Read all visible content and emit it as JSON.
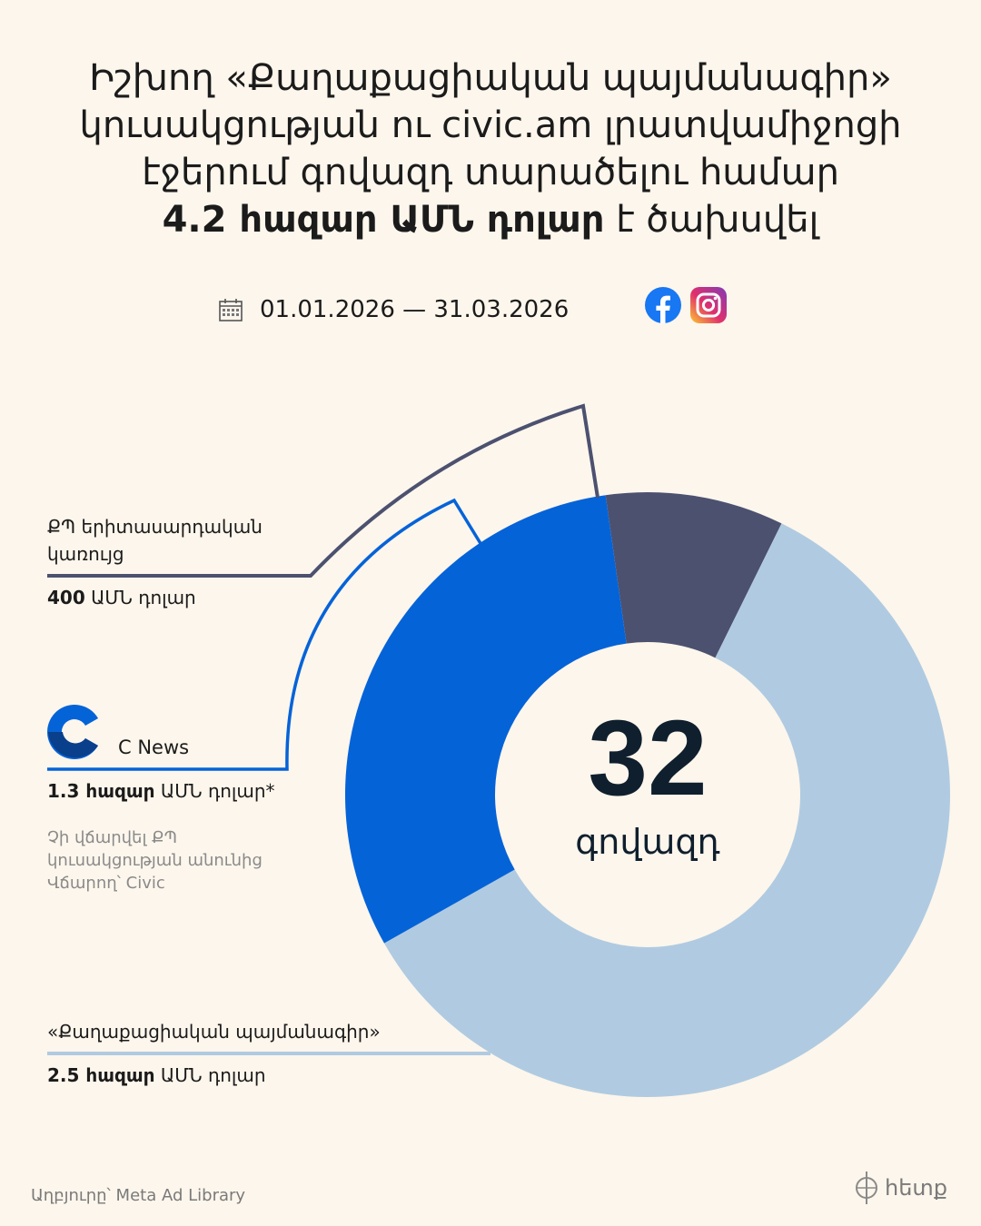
{
  "title": {
    "line1": "Իշխող «Քաղաքացիական պայմանագիր»",
    "line2": "կուսակցության ու civic.am լրատվամիջոցի",
    "line3": "էջերում գովազդ տարածելու համար",
    "amount_bold": "4.2 հազար ԱՄՆ դոլար",
    "amount_rest": " է ծախսվել"
  },
  "period": "01.01.2026 — 31.03.2026",
  "icons": {
    "calendar": "calendar-icon",
    "facebook": "facebook-icon",
    "instagram": "instagram-icon"
  },
  "colors": {
    "background": "#fdf6ec",
    "kp_youth": "#4c5170",
    "cnews": "#0563d8",
    "civil_contract": "#b0cbe1",
    "cnews_logo_dark": "#0a3f8c"
  },
  "labels": {
    "kp_youth_line1": "ՔՊ երիտասարդական",
    "kp_youth_line2": "կառույց",
    "kp_youth_amount_bold": "400",
    "kp_youth_amount_rest": " ԱՄՆ դոլար",
    "cnews_name": "C News",
    "cnews_amount_bold": "1.3 հազար",
    "cnews_amount_rest": " ԱՄՆ դոլար*",
    "cnews_note1": "Չի վճարվել ՔՊ",
    "cnews_note2": "կուսակցության անունից",
    "cnews_note3": "Վճարող՝ Civic",
    "cc_name": "«Քաղաքացիական պայմանագիր»",
    "cc_amount_bold": "2.5 հազար",
    "cc_amount_rest": " ԱՄՆ դոլար"
  },
  "center": {
    "number": "32",
    "unit": "գովազդ"
  },
  "source": "Աղբյուրը՝ Meta Ad Library",
  "brand": "հետք",
  "chart_data": {
    "type": "pie",
    "unit": "ԱՄՆ դոլար",
    "slices": [
      {
        "name": "ՔՊ երիտասարդական կառույց",
        "value": 400,
        "color": "#4c5170"
      },
      {
        "name": "«Քաղաքացիական պայմանագիր»",
        "value": 2500,
        "color": "#b0cbe1"
      },
      {
        "name": "C News",
        "value": 1300,
        "color": "#0563d8"
      }
    ],
    "total_label": "32",
    "total_unit": "գովազդ"
  }
}
